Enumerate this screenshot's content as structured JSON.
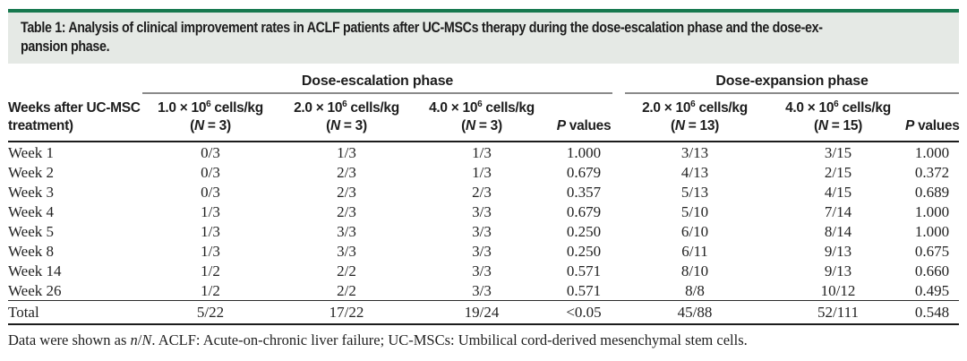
{
  "colors": {
    "accent_green": "#17794f",
    "caption_bg": "#e5e9e5",
    "rule_gray": "#8a8a8a",
    "text_dark": "#1b1b1b"
  },
  "caption": {
    "lines": [
      "Table 1: Analysis of clinical improvement rates in ACLF patients after UC-MSCs therapy during the dose-escalation phase and the dose-ex-",
      "pansion phase."
    ]
  },
  "table": {
    "stub_header_lines": [
      "Weeks after UC-MSC",
      "treatment)"
    ],
    "column_groups": [
      {
        "label": "Dose-escalation phase",
        "span": 4
      },
      {
        "label": "Dose-expansion phase",
        "span": 3
      }
    ],
    "column_headers": [
      {
        "lines": [
          [
            {
              "t": "1.0 × 10"
            },
            {
              "t": "6",
              "sup": true
            },
            {
              "t": " cells/kg"
            }
          ],
          [
            {
              "t": "("
            },
            {
              "t": "N",
              "i": true
            },
            {
              "t": " = 3)"
            }
          ]
        ]
      },
      {
        "lines": [
          [
            {
              "t": "2.0 × 10"
            },
            {
              "t": "6",
              "sup": true
            },
            {
              "t": " cells/kg"
            }
          ],
          [
            {
              "t": "("
            },
            {
              "t": "N",
              "i": true
            },
            {
              "t": " = 3)"
            }
          ]
        ]
      },
      {
        "lines": [
          [
            {
              "t": "4.0 × 10"
            },
            {
              "t": "6",
              "sup": true
            },
            {
              "t": " cells/kg"
            }
          ],
          [
            {
              "t": "("
            },
            {
              "t": "N",
              "i": true
            },
            {
              "t": " = 3)"
            }
          ]
        ]
      },
      {
        "lines": [
          [
            {
              "t": "P",
              "i": true
            },
            {
              "t": " values"
            }
          ]
        ]
      },
      {
        "lines": [
          [
            {
              "t": "2.0 × 10"
            },
            {
              "t": "6",
              "sup": true
            },
            {
              "t": " cells/kg"
            }
          ],
          [
            {
              "t": "("
            },
            {
              "t": "N",
              "i": true
            },
            {
              "t": " = 13)"
            }
          ]
        ]
      },
      {
        "lines": [
          [
            {
              "t": "4.0 × 10"
            },
            {
              "t": "6",
              "sup": true
            },
            {
              "t": " cells/kg"
            }
          ],
          [
            {
              "t": "("
            },
            {
              "t": "N",
              "i": true
            },
            {
              "t": " = 15)"
            }
          ]
        ]
      },
      {
        "lines": [
          [
            {
              "t": "P",
              "i": true
            },
            {
              "t": " values"
            }
          ]
        ]
      }
    ],
    "rows": [
      {
        "label": "Week 1",
        "values": [
          "0/3",
          "1/3",
          "1/3",
          "1.000",
          "3/13",
          "3/15",
          "1.000"
        ]
      },
      {
        "label": "Week 2",
        "values": [
          "0/3",
          "2/3",
          "1/3",
          "0.679",
          "4/13",
          "2/15",
          "0.372"
        ]
      },
      {
        "label": "Week 3",
        "values": [
          "0/3",
          "2/3",
          "2/3",
          "0.357",
          "5/13",
          "4/15",
          "0.689"
        ]
      },
      {
        "label": "Week 4",
        "values": [
          "1/3",
          "2/3",
          "3/3",
          "0.679",
          "5/10",
          "7/14",
          "1.000"
        ]
      },
      {
        "label": "Week 5",
        "values": [
          "1/3",
          "3/3",
          "3/3",
          "0.250",
          "6/10",
          "8/14",
          "1.000"
        ]
      },
      {
        "label": "Week 8",
        "values": [
          "1/3",
          "3/3",
          "3/3",
          "0.250",
          "6/11",
          "9/13",
          "0.675"
        ]
      },
      {
        "label": "Week 14",
        "values": [
          "1/2",
          "2/2",
          "3/3",
          "0.571",
          "8/10",
          "9/13",
          "0.660"
        ]
      },
      {
        "label": "Week 26",
        "values": [
          "1/2",
          "2/2",
          "3/3",
          "0.571",
          "8/8",
          "10/12",
          "0.495"
        ]
      }
    ],
    "total_row": {
      "label": "Total",
      "values": [
        "5/22",
        "17/22",
        "19/24",
        "<0.05",
        "45/88",
        "52/111",
        "0.548"
      ]
    }
  },
  "footnote": {
    "parts": [
      {
        "t": "Data were shown as "
      },
      {
        "t": "n",
        "i": true
      },
      {
        "t": "/"
      },
      {
        "t": "N",
        "i": true
      },
      {
        "t": ". ACLF: Acute-on-chronic liver failure; UC-MSCs: Umbilical cord-derived mesenchymal stem cells."
      }
    ]
  }
}
